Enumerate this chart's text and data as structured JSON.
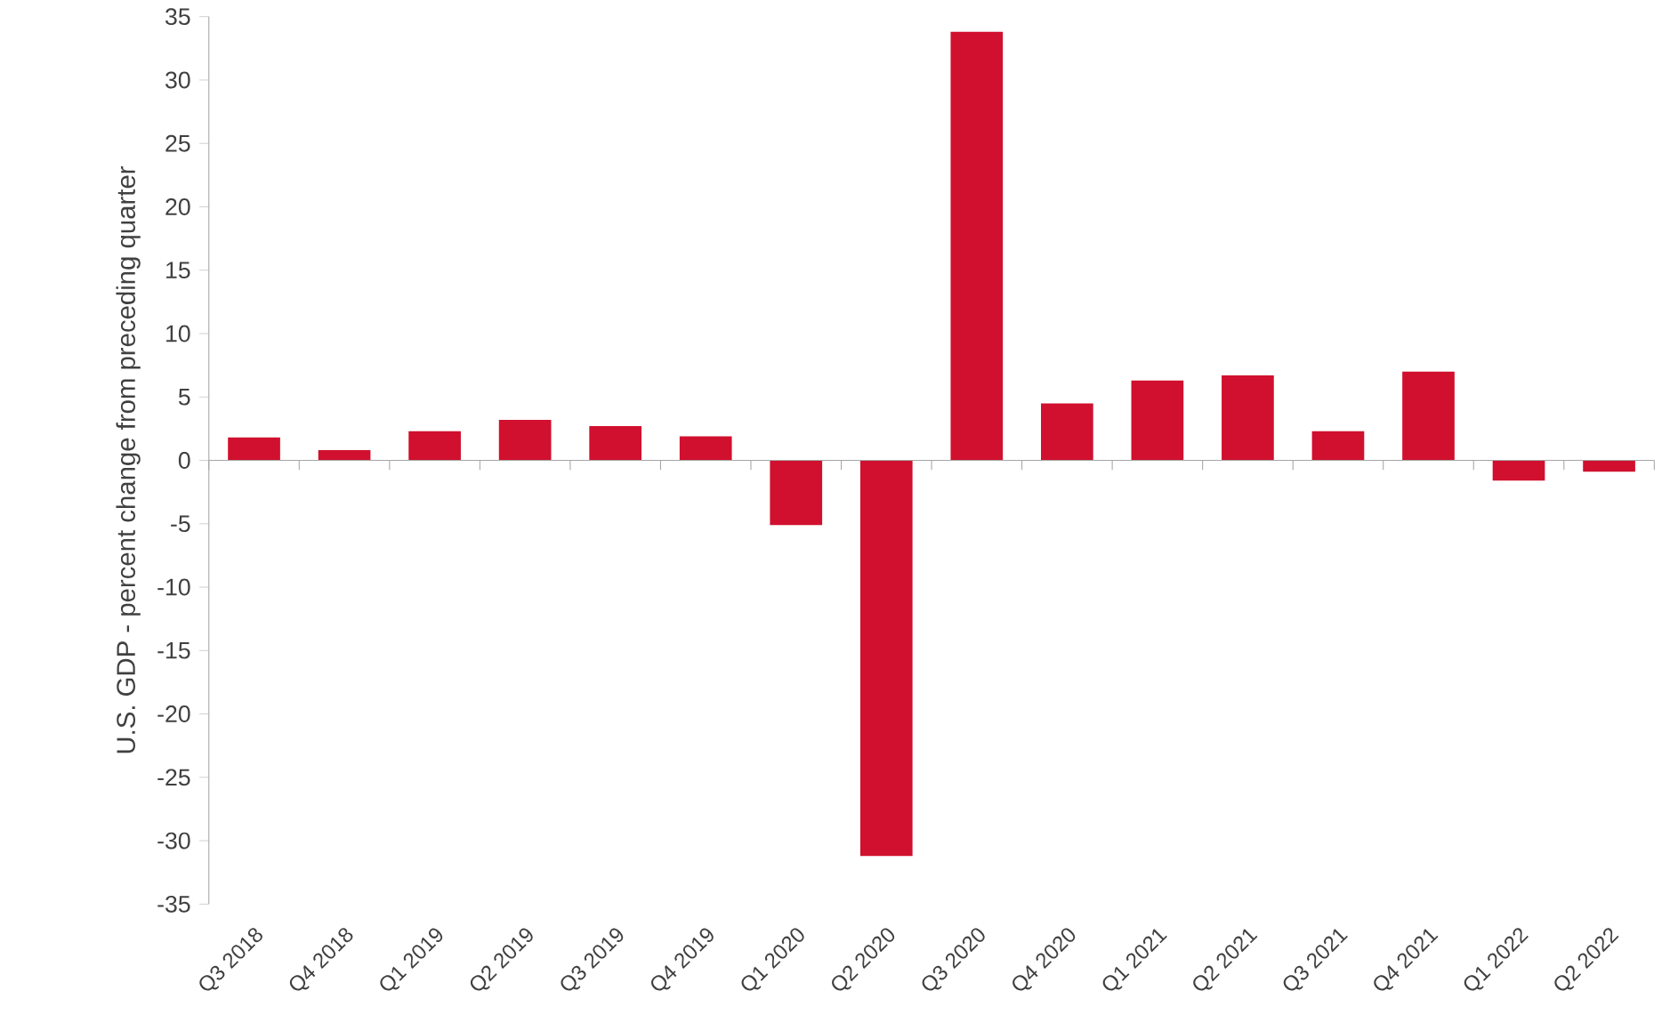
{
  "chart_data": {
    "type": "bar",
    "ylabel": "U.S. GDP - percent change from preceding quarter",
    "categories": [
      "Q3 2018",
      "Q4 2018",
      "Q1 2019",
      "Q2 2019",
      "Q3 2019",
      "Q4 2019",
      "Q1 2020",
      "Q2 2020",
      "Q3 2020",
      "Q4 2020",
      "Q1 2021",
      "Q2 2021",
      "Q3 2021",
      "Q4 2021",
      "Q1 2022",
      "Q2 2022"
    ],
    "values": [
      1.8,
      0.8,
      2.3,
      3.2,
      2.7,
      1.9,
      -5.1,
      -31.2,
      33.8,
      4.5,
      6.3,
      6.7,
      2.3,
      7.0,
      -1.6,
      -0.9
    ],
    "color": "#d0102e",
    "ylim": [
      -35,
      35
    ],
    "yticks": [
      -35,
      -30,
      -25,
      -20,
      -15,
      -10,
      -5,
      0,
      5,
      10,
      15,
      20,
      25,
      30,
      35
    ]
  }
}
